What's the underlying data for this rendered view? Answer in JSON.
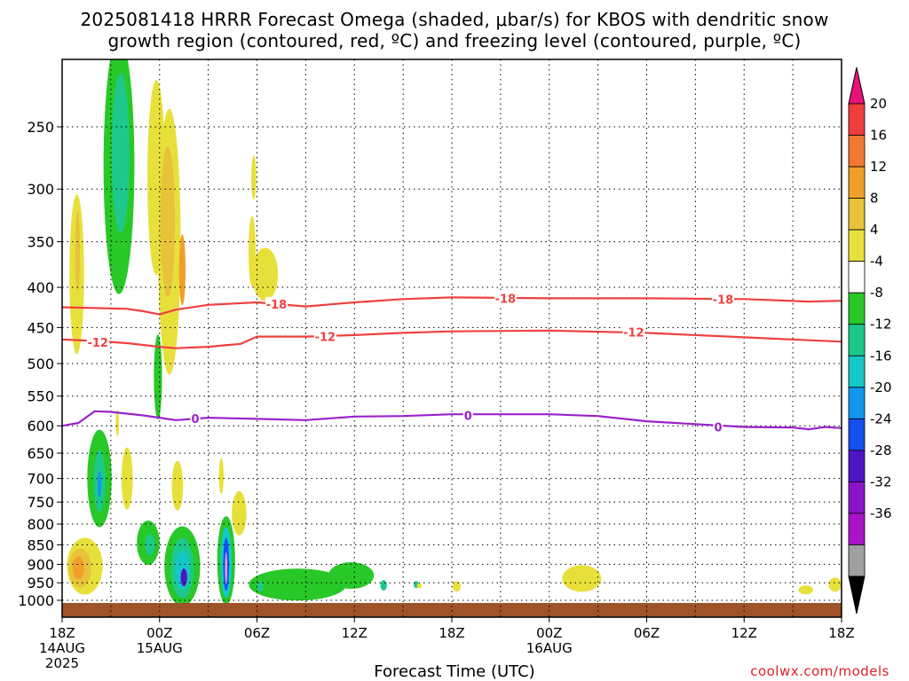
{
  "title_line1": "2025081418 HRRR Forecast Omega (shaded, μbar/s) for KBOS with dendritic snow",
  "title_line2": "growth region (contoured, red, ºC) and freezing level (contoured, purple, ºC)",
  "x_axis_title": "Forecast Time (UTC)",
  "credit": "coolwx.com/models",
  "chart_data": {
    "type": "heatmap",
    "title": "2025081418 HRRR Forecast Omega (shaded, μbar/s) for KBOS with dendritic snow growth region (contoured, red, ºC) and freezing level (contoured, purple, ºC)",
    "xlabel": "Forecast Time (UTC)",
    "ylabel": "",
    "x_range_hours": [
      0,
      48
    ],
    "y_range_hPa": [
      1050,
      200
    ],
    "y_scale": "log-pressure",
    "grid": true,
    "y_ticks": [
      {
        "value": 250,
        "label": "250"
      },
      {
        "value": 300,
        "label": "300"
      },
      {
        "value": 350,
        "label": "350"
      },
      {
        "value": 400,
        "label": "400"
      },
      {
        "value": 450,
        "label": "450"
      },
      {
        "value": 500,
        "label": "500"
      },
      {
        "value": 550,
        "label": "550"
      },
      {
        "value": 600,
        "label": "600"
      },
      {
        "value": 650,
        "label": "650"
      },
      {
        "value": 700,
        "label": "700"
      },
      {
        "value": 750,
        "label": "750"
      },
      {
        "value": 800,
        "label": "800"
      },
      {
        "value": 850,
        "label": "850"
      },
      {
        "value": 900,
        "label": "900"
      },
      {
        "value": 950,
        "label": "950"
      },
      {
        "value": 1000,
        "label": "1000"
      }
    ],
    "x_ticks": [
      {
        "hour": 0,
        "lines": [
          "18Z",
          "14AUG",
          "2025"
        ]
      },
      {
        "hour": 6,
        "lines": [
          "00Z",
          "15AUG"
        ]
      },
      {
        "hour": 12,
        "lines": [
          "06Z"
        ]
      },
      {
        "hour": 18,
        "lines": [
          "12Z"
        ]
      },
      {
        "hour": 24,
        "lines": [
          "18Z"
        ]
      },
      {
        "hour": 30,
        "lines": [
          "00Z",
          "16AUG"
        ]
      },
      {
        "hour": 36,
        "lines": [
          "06Z"
        ]
      },
      {
        "hour": 42,
        "lines": [
          "12Z"
        ]
      },
      {
        "hour": 48,
        "lines": [
          "18Z"
        ]
      }
    ],
    "colorbar": {
      "labels": [
        "20",
        "16",
        "12",
        "8",
        "4",
        "-4",
        "-8",
        "-12",
        "-16",
        "-20",
        "-24",
        "-28",
        "-32",
        "-36"
      ],
      "colors": [
        "#e8127a",
        "#f03c3c",
        "#f07832",
        "#f0a02a",
        "#e8c23a",
        "#e8e03a",
        "#ffffff",
        "#28c828",
        "#1ec88c",
        "#14c8c8",
        "#1496f0",
        "#1450f0",
        "#5014c8",
        "#8c14c8",
        "#aa14c8",
        "#a0a0a0",
        "#000000"
      ]
    },
    "contours": [
      {
        "label": "-18",
        "color": "#f04040",
        "points": [
          [
            0,
            424
          ],
          [
            2,
            425
          ],
          [
            4,
            426
          ],
          [
            5,
            429
          ],
          [
            6,
            433
          ],
          [
            7,
            427
          ],
          [
            9,
            421
          ],
          [
            12,
            418
          ],
          [
            15,
            423
          ],
          [
            18,
            418
          ],
          [
            21,
            414
          ],
          [
            24,
            412
          ],
          [
            30,
            413
          ],
          [
            36,
            413
          ],
          [
            42,
            414
          ],
          [
            46,
            417
          ],
          [
            48,
            416
          ]
        ]
      },
      {
        "label": "-12",
        "color": "#f04040",
        "points": [
          [
            0,
            466
          ],
          [
            2,
            468
          ],
          [
            4,
            471
          ],
          [
            6,
            476
          ],
          [
            7,
            478
          ],
          [
            9,
            476
          ],
          [
            11,
            472
          ],
          [
            12,
            462
          ],
          [
            15,
            462
          ],
          [
            18,
            460
          ],
          [
            21,
            457
          ],
          [
            24,
            455
          ],
          [
            30,
            454
          ],
          [
            36,
            457
          ],
          [
            42,
            463
          ],
          [
            46,
            467
          ],
          [
            48,
            469
          ]
        ]
      },
      {
        "label": "0",
        "color": "#9a22cc",
        "points": [
          [
            0,
            600
          ],
          [
            1,
            595
          ],
          [
            2,
            575
          ],
          [
            3,
            576
          ],
          [
            5,
            582
          ],
          [
            7,
            590
          ],
          [
            9,
            586
          ],
          [
            12,
            588
          ],
          [
            15,
            590
          ],
          [
            18,
            584
          ],
          [
            21,
            583
          ],
          [
            24,
            580
          ],
          [
            27,
            580
          ],
          [
            30,
            580
          ],
          [
            33,
            583
          ],
          [
            36,
            592
          ],
          [
            39,
            597
          ],
          [
            42,
            602
          ],
          [
            45,
            603
          ],
          [
            46,
            606
          ],
          [
            47,
            602
          ],
          [
            48,
            604
          ]
        ]
      }
    ],
    "contour_labels": [
      {
        "text": "-18",
        "hour": 13.2,
        "hPa": 420
      },
      {
        "text": "-18",
        "hour": 27.3,
        "hPa": 413
      },
      {
        "text": "-18",
        "hour": 40.7,
        "hPa": 414
      },
      {
        "text": "-12",
        "hour": 2.2,
        "hPa": 470
      },
      {
        "text": "-12",
        "hour": 16.2,
        "hPa": 462
      },
      {
        "text": "-12",
        "hour": 35.2,
        "hPa": 456
      },
      {
        "text": "0",
        "hour": 8.2,
        "hPa": 587
      },
      {
        "text": "0",
        "hour": 25.0,
        "hPa": 582
      },
      {
        "text": "0",
        "hour": 40.4,
        "hPa": 602
      }
    ]
  }
}
